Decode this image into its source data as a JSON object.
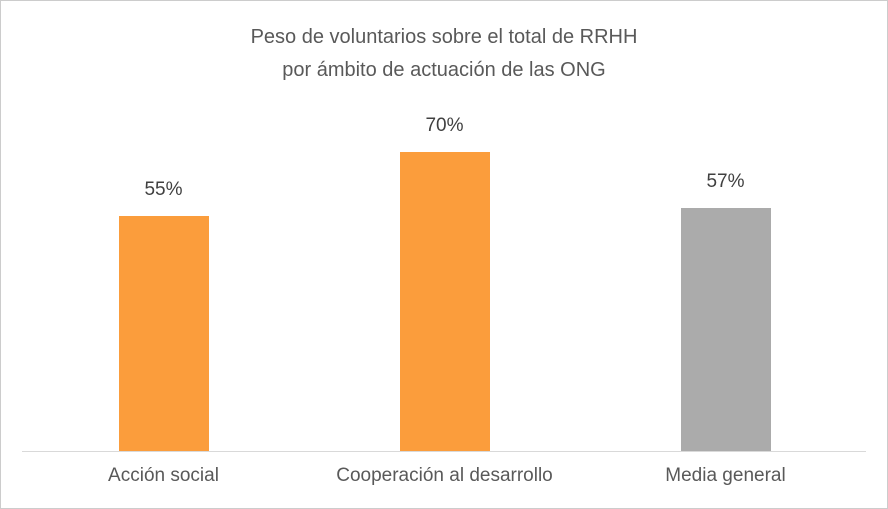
{
  "chart_data": {
    "type": "bar",
    "title_line1": "Peso de voluntarios sobre el total de RRHH",
    "title_line2": "por ámbito de actuación de las ONG",
    "categories": [
      "Acción social",
      "Cooperación al desarrollo",
      "Media general"
    ],
    "values": [
      55,
      70,
      57
    ],
    "value_labels": [
      "55%",
      "70%",
      "57%"
    ],
    "bar_colors": [
      "#FB9D3C",
      "#FB9D3C",
      "#ABABAB"
    ],
    "ylabel": "",
    "xlabel": "",
    "ylim": [
      0,
      75
    ],
    "grid": false,
    "legend": false
  },
  "colors": {
    "title_text": "#595959",
    "value_label_text": "#404040",
    "category_label_text": "#595959",
    "axis_line": "#D9D9D9",
    "frame_border": "#CCCCCC",
    "background": "#FFFFFF"
  }
}
